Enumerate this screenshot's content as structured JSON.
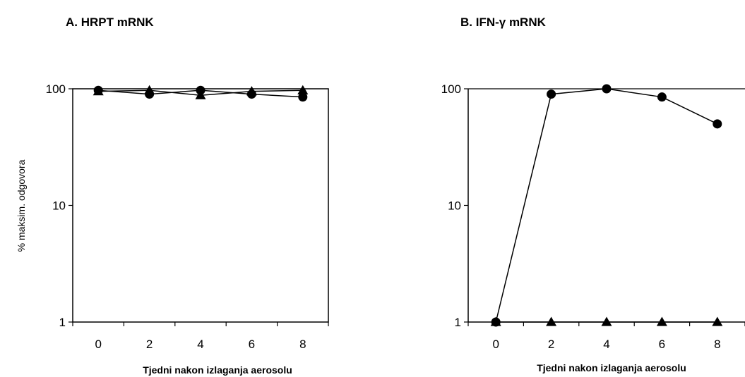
{
  "chart_data": [
    {
      "type": "line",
      "title": "A. HRPT mRNK",
      "xlabel": "Tjedni nakon izlaganja aerosolu",
      "ylabel": "% maksim. odgovora",
      "yscale": "log",
      "ylim": [
        1,
        100
      ],
      "xlim": [
        -1,
        9
      ],
      "yticks": [
        "1",
        "10",
        "100"
      ],
      "xticks": [
        "0",
        "2",
        "4",
        "6",
        "8"
      ],
      "x": [
        0,
        2,
        4,
        6,
        8
      ],
      "series": [
        {
          "marker": "circle",
          "values": [
            97,
            90,
            97,
            90,
            85
          ]
        },
        {
          "marker": "triangle",
          "values": [
            95,
            97,
            88,
            95,
            97
          ]
        }
      ]
    },
    {
      "type": "line",
      "title": "B. IFN-γ mRNK",
      "xlabel": "Tjedni nakon izlaganja aerosolu",
      "ylabel": "",
      "yscale": "log",
      "ylim": [
        1,
        100
      ],
      "xlim": [
        -1,
        9
      ],
      "yticks": [
        "1",
        "10",
        "100"
      ],
      "xticks": [
        "0",
        "2",
        "4",
        "6",
        "8"
      ],
      "x": [
        0,
        2,
        4,
        6,
        8
      ],
      "series": [
        {
          "marker": "circle",
          "values": [
            1,
            90,
            100,
            85,
            50
          ]
        },
        {
          "marker": "triangle",
          "values": [
            1,
            1,
            1,
            1,
            1
          ]
        }
      ]
    }
  ]
}
